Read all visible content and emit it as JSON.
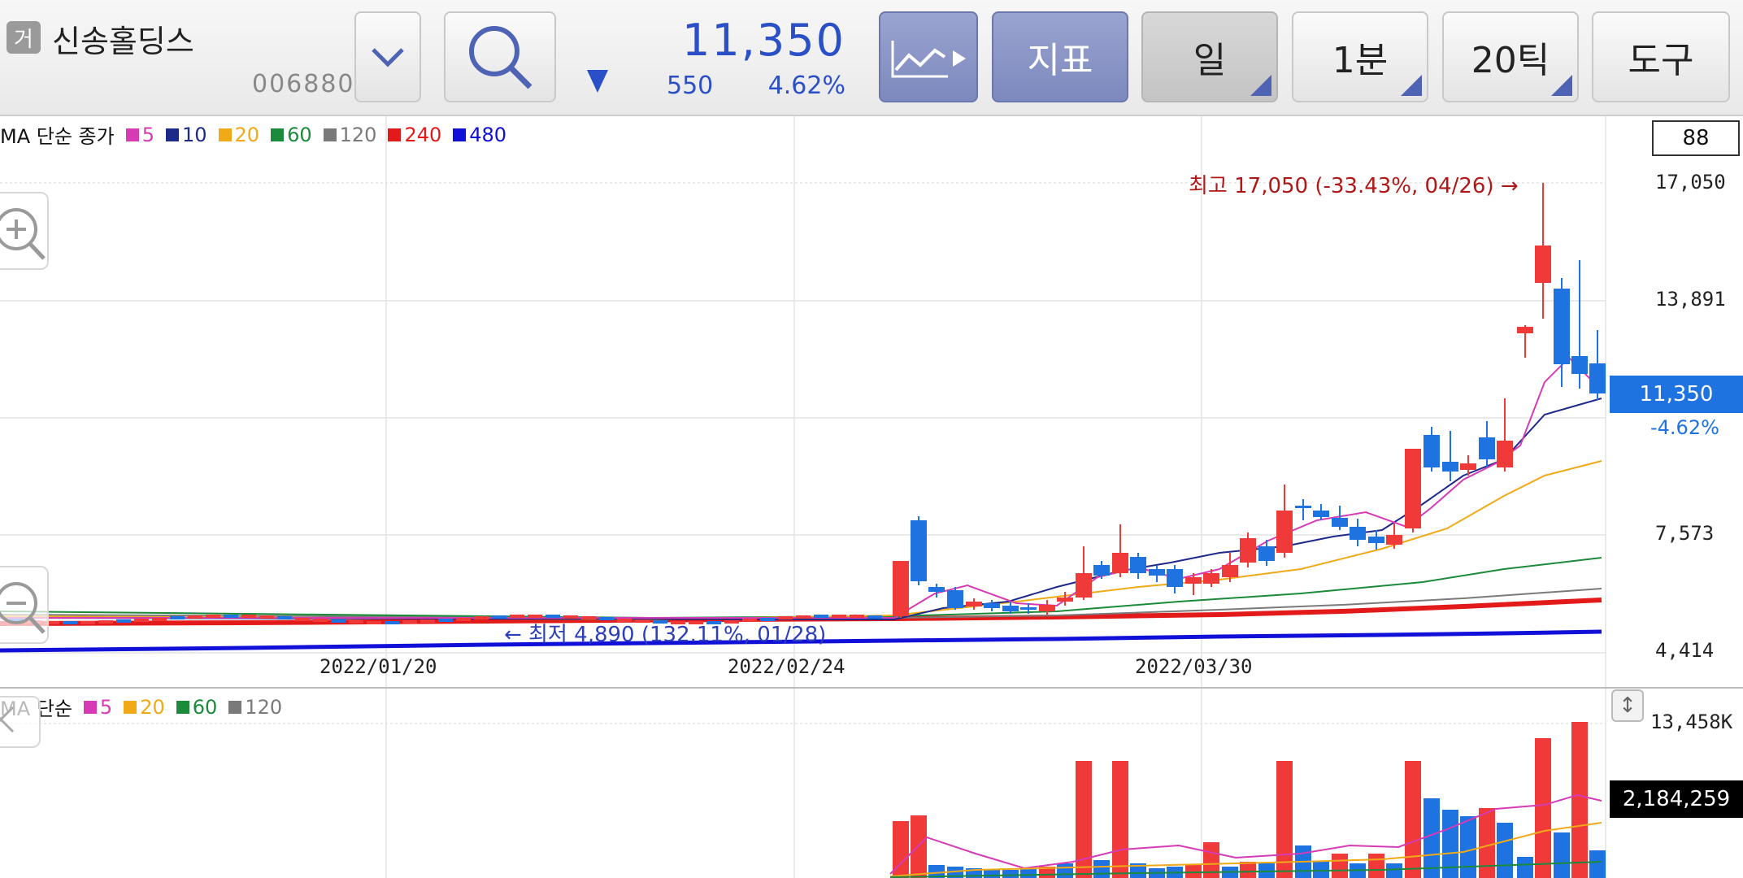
{
  "stock": {
    "tag": "거",
    "name": "신송홀딩스",
    "code": "006880"
  },
  "quote": {
    "price": "11,350",
    "change": "550",
    "rate": "4.62%"
  },
  "toolbar": {
    "chart_type_icon": "line-chart-play-icon",
    "indicator_label": "지표",
    "period_label": "일",
    "minute_label": "1분",
    "tick_label": "20틱",
    "tools_label": "도구"
  },
  "count": "88",
  "price_panel": {
    "legend_title": "MA 단순 종가",
    "legend": [
      {
        "label": "5",
        "color": "#d63bb5"
      },
      {
        "label": "10",
        "color": "#1e2a8a"
      },
      {
        "label": "20",
        "color": "#f0aa17"
      },
      {
        "label": "60",
        "color": "#1b8a3a"
      },
      {
        "label": "120",
        "color": "#7a7a7a"
      },
      {
        "label": "240",
        "color": "#e31a1a"
      },
      {
        "label": "480",
        "color": "#1010d8"
      }
    ],
    "y_labels": [
      "17,050",
      "13,891",
      "7,573",
      "4,414"
    ],
    "x_labels": [
      "2022/01/20",
      "2022/02/24",
      "2022/03/30"
    ],
    "current_price": "11,350",
    "current_rate": "-4.62%",
    "high_annotation": "최고 17,050 (-33.43%, 04/26) →",
    "low_annotation": "← 최저 4,890 (132.11%, 01/28)"
  },
  "volume_panel": {
    "legend_title": "MA 단순",
    "legend": [
      {
        "label": "5",
        "color": "#d63bb5"
      },
      {
        "label": "20",
        "color": "#f0aa17"
      },
      {
        "label": "60",
        "color": "#1b8a3a"
      },
      {
        "label": "120",
        "color": "#7a7a7a"
      }
    ],
    "y_max_label": "13,458K",
    "current_volume": "2,184,259"
  },
  "chart_data": {
    "type": "candlestick",
    "price_range": [
      4414,
      17050
    ],
    "dates": [
      "2022/01/20",
      "2022/02/24",
      "2022/03/30"
    ],
    "high": {
      "value": 17050,
      "date": "04/26"
    },
    "low": {
      "value": 4890,
      "date": "01/28"
    },
    "last_close": 11350
  }
}
